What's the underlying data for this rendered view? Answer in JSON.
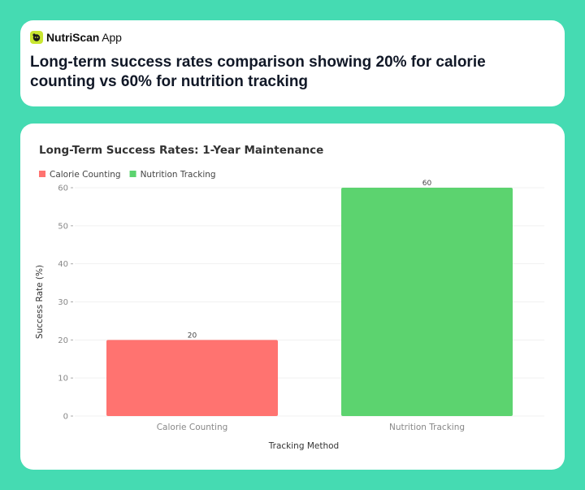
{
  "brand": {
    "name_bold": "NutriScan",
    "name_rest": " App",
    "logo_icon": "leaf-face-icon",
    "logo_color": "#c9e631"
  },
  "headline": "Long-term success rates comparison showing 20% for calorie counting vs 60% for nutrition tracking",
  "colors": {
    "background": "#45dbb2",
    "calorie_counting": "#ff7370",
    "nutrition_tracking": "#5cd36f"
  },
  "chart_data": {
    "type": "bar",
    "title": "Long-Term Success Rates: 1-Year Maintenance",
    "xlabel": "Tracking Method",
    "ylabel": "Success Rate (%)",
    "categories": [
      "Calorie Counting",
      "Nutrition Tracking"
    ],
    "values": [
      20,
      60
    ],
    "data_labels": [
      "20",
      "60"
    ],
    "colors": [
      "#ff7370",
      "#5cd36f"
    ],
    "legend": [
      "Calorie Counting",
      "Nutrition Tracking"
    ],
    "legend_position": "top-left",
    "ylim": [
      0,
      60
    ],
    "yticks": [
      "0",
      "10",
      "20",
      "30",
      "40",
      "50",
      "60"
    ],
    "grid": true
  }
}
